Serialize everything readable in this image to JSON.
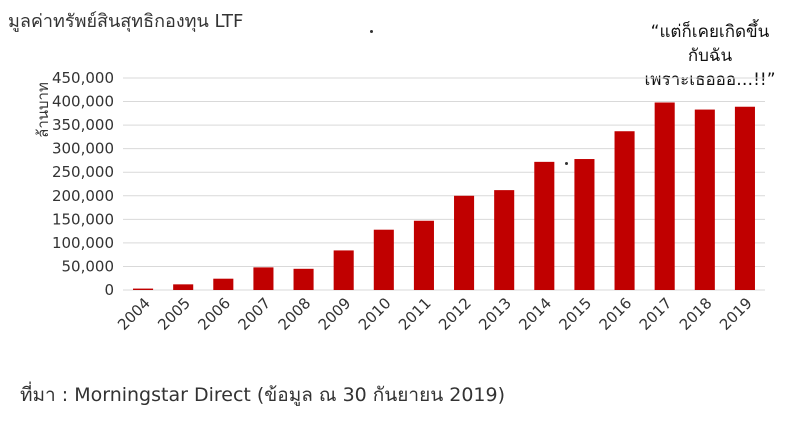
{
  "header": {
    "title": "มูลค่าทรัพย์สินสุทธิกองทุน LTF"
  },
  "annotation": {
    "lines": [
      "“แต่ก็เคยเกิดขึ้น",
      "กับฉัน",
      "เพราะเธอออ…!!”"
    ]
  },
  "footer": {
    "source": "ที่มา : Morningstar Direct (ข้อมูล ณ 30 กันยายน 2019)"
  },
  "chart_data": {
    "type": "bar",
    "title": "มูลค่าทรัพย์สินสุทธิกองทุน LTF",
    "xlabel": "",
    "ylabel": "ล้านบาท",
    "categories": [
      "2004",
      "2005",
      "2006",
      "2007",
      "2008",
      "2009",
      "2010",
      "2011",
      "2012",
      "2013",
      "2014",
      "2015",
      "2016",
      "2017",
      "2018",
      "2019"
    ],
    "values": [
      3000,
      12000,
      24000,
      48000,
      45000,
      84000,
      128000,
      147000,
      200000,
      212000,
      272000,
      278000,
      337000,
      398000,
      383000,
      389000
    ],
    "ylim": [
      0,
      450000
    ],
    "yticks": [
      0,
      50000,
      100000,
      150000,
      200000,
      250000,
      300000,
      350000,
      400000,
      450000
    ],
    "ytick_labels": [
      "0",
      "50,000",
      "100,000",
      "150,000",
      "200,000",
      "250,000",
      "300,000",
      "350,000",
      "400,000",
      "450,000"
    ],
    "grid": true,
    "bar_color": "#c00000",
    "grid_color": "#d9d9d9"
  }
}
